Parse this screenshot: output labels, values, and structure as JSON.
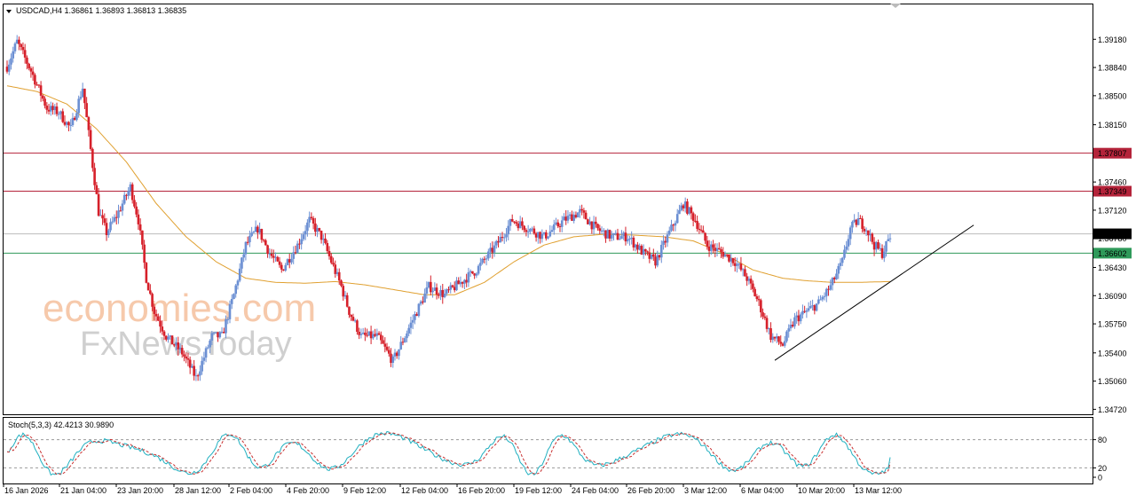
{
  "header": {
    "symbol_line": "USDCAD,H4  1.36861 1.36893 1.36813 1.36835",
    "stoch_line": "Stoch(5,3,3) 42.4213 30.9890"
  },
  "watermark": {
    "line1": "economies.com",
    "line2": "FxNewsToday"
  },
  "colors": {
    "bull": "#6b8fd3",
    "bear": "#d6202a",
    "ma": "#e0a030",
    "resistance": "#b4233a",
    "support": "#2f9a5a",
    "price_line": "#bdbdbd",
    "trendline": "#000000",
    "stoch_main": "#20b0c0",
    "stoch_signal": "#c83030"
  },
  "chart_data": [
    {
      "type": "candlestick",
      "symbol": "USDCAD",
      "timeframe": "H4",
      "ylim": [
        1.3466,
        1.396
      ],
      "y_ticks": [
        "1.39180",
        "1.38840",
        "1.38500",
        "1.38150",
        "1.37807",
        "1.37460",
        "1.37349",
        "1.37120",
        "1.36835",
        "1.36780",
        "1.36602",
        "1.36430",
        "1.36090",
        "1.35750",
        "1.35400",
        "1.35060",
        "1.34720"
      ],
      "x_ticks": [
        "16 Jan 2026",
        "21 Jan 04:00",
        "23 Jan 20:00",
        "28 Jan 12:00",
        "2 Feb 04:00",
        "4 Feb 20:00",
        "9 Feb 12:00",
        "12 Feb 04:00",
        "16 Feb 20:00",
        "19 Feb 12:00",
        "24 Feb 04:00",
        "26 Feb 20:00",
        "3 Mar 12:00",
        "6 Mar 04:00",
        "10 Mar 20:00",
        "13 Mar 12:00"
      ],
      "price_path": [
        [
          0,
          1.3885
        ],
        [
          5,
          1.3915
        ],
        [
          12,
          1.388
        ],
        [
          20,
          1.3835
        ],
        [
          26,
          1.383
        ],
        [
          32,
          1.381
        ],
        [
          38,
          1.386
        ],
        [
          42,
          1.3785
        ],
        [
          46,
          1.371
        ],
        [
          50,
          1.3685
        ],
        [
          55,
          1.3705
        ],
        [
          62,
          1.374
        ],
        [
          66,
          1.37
        ],
        [
          70,
          1.363
        ],
        [
          74,
          1.359
        ],
        [
          80,
          1.356
        ],
        [
          88,
          1.354
        ],
        [
          95,
          1.351
        ],
        [
          103,
          1.356
        ],
        [
          108,
          1.356
        ],
        [
          114,
          1.361
        ],
        [
          120,
          1.367
        ],
        [
          126,
          1.369
        ],
        [
          132,
          1.366
        ],
        [
          138,
          1.364
        ],
        [
          146,
          1.367
        ],
        [
          152,
          1.37
        ],
        [
          158,
          1.368
        ],
        [
          163,
          1.365
        ],
        [
          168,
          1.362
        ],
        [
          172,
          1.359
        ],
        [
          178,
          1.356
        ],
        [
          186,
          1.356
        ],
        [
          194,
          1.353
        ],
        [
          200,
          1.356
        ],
        [
          206,
          1.359
        ],
        [
          212,
          1.362
        ],
        [
          220,
          1.361
        ],
        [
          228,
          1.3625
        ],
        [
          236,
          1.364
        ],
        [
          246,
          1.367
        ],
        [
          254,
          1.37
        ],
        [
          262,
          1.369
        ],
        [
          270,
          1.368
        ],
        [
          280,
          1.37
        ],
        [
          288,
          1.371
        ],
        [
          296,
          1.369
        ],
        [
          304,
          1.368
        ],
        [
          312,
          1.368
        ],
        [
          320,
          1.366
        ],
        [
          326,
          1.365
        ],
        [
          334,
          1.369
        ],
        [
          340,
          1.372
        ],
        [
          346,
          1.37
        ],
        [
          352,
          1.367
        ],
        [
          360,
          1.366
        ],
        [
          366,
          1.365
        ],
        [
          372,
          1.363
        ],
        [
          378,
          1.36
        ],
        [
          384,
          1.356
        ],
        [
          390,
          1.355
        ],
        [
          396,
          1.358
        ],
        [
          402,
          1.359
        ],
        [
          408,
          1.36
        ],
        [
          414,
          1.362
        ],
        [
          420,
          1.365
        ],
        [
          424,
          1.369
        ],
        [
          428,
          1.37
        ],
        [
          432,
          1.369
        ],
        [
          436,
          1.367
        ],
        [
          440,
          1.366
        ],
        [
          444,
          1.368
        ]
      ],
      "candle_count": 445,
      "resistance_levels": [
        "1.37807",
        "1.37349"
      ],
      "support_level": "1.36602",
      "current_price": "1.36835",
      "moving_average_path": [
        [
          0,
          1.3862
        ],
        [
          15,
          1.3855
        ],
        [
          30,
          1.384
        ],
        [
          45,
          1.381
        ],
        [
          60,
          1.377
        ],
        [
          75,
          1.372
        ],
        [
          90,
          1.368
        ],
        [
          105,
          1.365
        ],
        [
          120,
          1.363
        ],
        [
          135,
          1.3625
        ],
        [
          150,
          1.3624
        ],
        [
          165,
          1.3626
        ],
        [
          180,
          1.3622
        ],
        [
          195,
          1.3616
        ],
        [
          210,
          1.361
        ],
        [
          225,
          1.361
        ],
        [
          240,
          1.3625
        ],
        [
          255,
          1.365
        ],
        [
          270,
          1.367
        ],
        [
          285,
          1.368
        ],
        [
          300,
          1.3683
        ],
        [
          315,
          1.3682
        ],
        [
          330,
          1.368
        ],
        [
          345,
          1.3675
        ],
        [
          360,
          1.366
        ],
        [
          375,
          1.364
        ],
        [
          390,
          1.363
        ],
        [
          402,
          1.3627
        ],
        [
          415,
          1.3625
        ],
        [
          428,
          1.3625
        ],
        [
          444,
          1.3626
        ]
      ],
      "trendline": [
        [
          386,
          1.3531
        ],
        [
          486,
          1.3694
        ]
      ]
    },
    {
      "type": "stochastic",
      "name": "Stoch(5,3,3)",
      "main": 42.4213,
      "signal": 30.989,
      "ylim": [
        0,
        100
      ],
      "y_ticks": [
        "80",
        "20",
        "0"
      ],
      "levels": [
        80,
        20
      ]
    }
  ]
}
